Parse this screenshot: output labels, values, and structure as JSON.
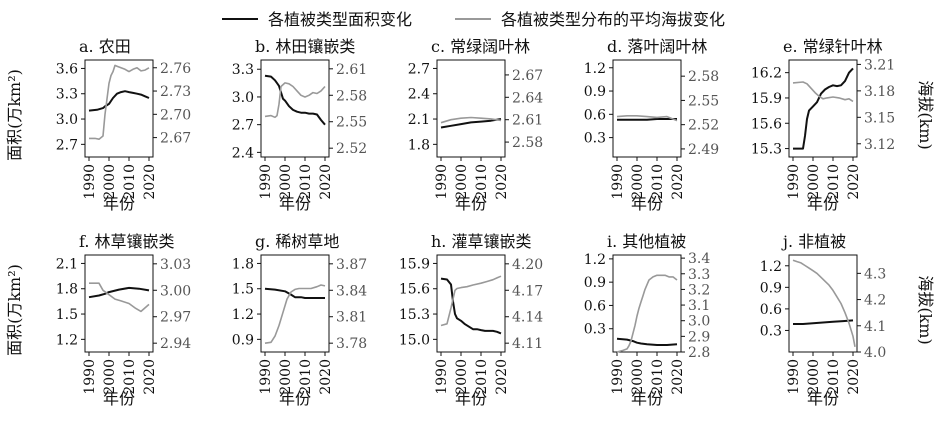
{
  "legend": {
    "area_label": "各植被类型面积变化",
    "elev_label": "各植被类型分布的平均海拔变化",
    "area_color": "#111111",
    "elev_color": "#999999"
  },
  "axis_labels": {
    "left_row1": "面积(万km²)",
    "left_row2": "面积(万km²)",
    "right_row1": "海拔(km)",
    "right_row2": "海拔(km)",
    "xlabel": "年份"
  },
  "chart_data": [
    {
      "type": "line",
      "title": "a. 农田",
      "xticks": [
        "1990",
        "2000",
        "2010",
        "2020"
      ],
      "xlim": [
        1988,
        2022
      ],
      "yleft": {
        "lim": [
          2.55,
          3.7
        ],
        "ticks": [
          "2.7",
          "3.0",
          "3.3",
          "3.6"
        ]
      },
      "yright": {
        "lim": [
          2.645,
          2.77
        ],
        "ticks": [
          "2.67",
          "2.70",
          "2.73",
          "2.76"
        ]
      },
      "series": [
        {
          "axis": "left",
          "x": [
            1990,
            1994,
            1997,
            1998,
            2000,
            2002,
            2004,
            2006,
            2008,
            2010,
            2012,
            2014,
            2016,
            2018,
            2020
          ],
          "y": [
            3.1,
            3.11,
            3.13,
            3.15,
            3.18,
            3.25,
            3.3,
            3.32,
            3.33,
            3.32,
            3.31,
            3.3,
            3.29,
            3.27,
            3.25
          ]
        },
        {
          "axis": "right",
          "x": [
            1990,
            1993,
            1995,
            1996,
            1997,
            1998,
            1999,
            2000,
            2001,
            2002,
            2003,
            2004,
            2006,
            2008,
            2010,
            2012,
            2014,
            2016,
            2018,
            2020
          ],
          "y": [
            2.669,
            2.669,
            2.668,
            2.67,
            2.672,
            2.7,
            2.72,
            2.74,
            2.75,
            2.755,
            2.763,
            2.762,
            2.76,
            2.758,
            2.755,
            2.758,
            2.76,
            2.756,
            2.757,
            2.76
          ]
        }
      ]
    },
    {
      "type": "line",
      "title": "b. 林田镶嵌类",
      "xticks": [
        "1990",
        "2000",
        "2010",
        "2020"
      ],
      "xlim": [
        1988,
        2022
      ],
      "yleft": {
        "lim": [
          2.35,
          3.4
        ],
        "ticks": [
          "2.4",
          "2.7",
          "3.0",
          "3.3"
        ]
      },
      "yright": {
        "lim": [
          2.51,
          2.62
        ],
        "ticks": [
          "2.52",
          "2.55",
          "2.58",
          "2.61"
        ]
      },
      "series": [
        {
          "axis": "left",
          "x": [
            1990,
            1993,
            1995,
            1996,
            1997,
            1998,
            1999,
            2000,
            2002,
            2004,
            2006,
            2008,
            2010,
            2012,
            2014,
            2016,
            2018,
            2020
          ],
          "y": [
            3.23,
            3.22,
            3.18,
            3.15,
            3.12,
            3.05,
            2.98,
            2.96,
            2.9,
            2.86,
            2.84,
            2.83,
            2.83,
            2.82,
            2.82,
            2.81,
            2.75,
            2.7
          ]
        },
        {
          "axis": "right",
          "x": [
            1990,
            1993,
            1995,
            1996,
            1997,
            1998,
            2000,
            2002,
            2004,
            2006,
            2008,
            2010,
            2012,
            2014,
            2016,
            2018,
            2020
          ],
          "y": [
            2.556,
            2.557,
            2.555,
            2.557,
            2.57,
            2.59,
            2.594,
            2.593,
            2.59,
            2.585,
            2.58,
            2.578,
            2.58,
            2.583,
            2.582,
            2.585,
            2.59
          ]
        }
      ]
    },
    {
      "type": "line",
      "title": "c. 常绿阔叶林",
      "xticks": [
        "1990",
        "2000",
        "2010",
        "2020"
      ],
      "xlim": [
        1988,
        2022
      ],
      "yleft": {
        "lim": [
          1.65,
          2.8
        ],
        "ticks": [
          "1.8",
          "2.1",
          "2.4",
          "2.7"
        ]
      },
      "yright": {
        "lim": [
          2.56,
          2.69
        ],
        "ticks": [
          "2.58",
          "2.61",
          "2.64",
          "2.67"
        ]
      },
      "series": [
        {
          "axis": "left",
          "x": [
            1990,
            1995,
            2000,
            2005,
            2010,
            2015,
            2020
          ],
          "y": [
            2.0,
            2.02,
            2.04,
            2.06,
            2.07,
            2.08,
            2.1
          ]
        },
        {
          "axis": "right",
          "x": [
            1990,
            1995,
            2000,
            2005,
            2010,
            2015,
            2020
          ],
          "y": [
            2.606,
            2.61,
            2.612,
            2.613,
            2.612,
            2.611,
            2.609
          ]
        }
      ]
    },
    {
      "type": "line",
      "title": "d. 落叶阔叶林",
      "xticks": [
        "1990",
        "2000",
        "2010",
        "2020"
      ],
      "xlim": [
        1988,
        2022
      ],
      "yleft": {
        "lim": [
          0.05,
          1.3
        ],
        "ticks": [
          "0.3",
          "0.6",
          "0.9",
          "1.2"
        ]
      },
      "yright": {
        "lim": [
          2.48,
          2.6
        ],
        "ticks": [
          "2.49",
          "2.52",
          "2.55",
          "2.58"
        ]
      },
      "series": [
        {
          "axis": "left",
          "x": [
            1990,
            1995,
            2000,
            2005,
            2010,
            2015,
            2020
          ],
          "y": [
            0.53,
            0.53,
            0.53,
            0.53,
            0.54,
            0.54,
            0.54
          ]
        },
        {
          "axis": "right",
          "x": [
            1990,
            1995,
            2000,
            2005,
            2010,
            2015,
            2020
          ],
          "y": [
            2.53,
            2.531,
            2.531,
            2.53,
            2.529,
            2.53,
            2.525
          ]
        }
      ]
    },
    {
      "type": "line",
      "title": "e. 常绿针叶林",
      "xticks": [
        "1990",
        "2000",
        "2010",
        "2020"
      ],
      "xlim": [
        1988,
        2022
      ],
      "yleft": {
        "lim": [
          15.2,
          16.35
        ],
        "ticks": [
          "15.3",
          "15.6",
          "15.9",
          "16.2"
        ]
      },
      "yright": {
        "lim": [
          3.105,
          3.215
        ],
        "ticks": [
          "3.12",
          "3.15",
          "3.18",
          "3.21"
        ]
      },
      "series": [
        {
          "axis": "left",
          "x": [
            1990,
            1993,
            1995,
            1996,
            1997,
            1998,
            2000,
            2002,
            2004,
            2006,
            2008,
            2010,
            2012,
            2014,
            2016,
            2018,
            2020
          ],
          "y": [
            15.3,
            15.3,
            15.3,
            15.45,
            15.65,
            15.75,
            15.8,
            15.85,
            15.95,
            16.0,
            16.03,
            16.05,
            16.04,
            16.05,
            16.1,
            16.2,
            16.25
          ]
        },
        {
          "axis": "right",
          "x": [
            1990,
            1995,
            1997,
            1999,
            2001,
            2003,
            2005,
            2007,
            2010,
            2013,
            2016,
            2018,
            2020
          ],
          "y": [
            3.189,
            3.19,
            3.188,
            3.183,
            3.178,
            3.174,
            3.171,
            3.172,
            3.173,
            3.172,
            3.17,
            3.171,
            3.168
          ]
        }
      ]
    },
    {
      "type": "line",
      "title": "f. 林草镶嵌类",
      "xticks": [
        "1990",
        "2000",
        "2010",
        "2020"
      ],
      "xlim": [
        1988,
        2022
      ],
      "yleft": {
        "lim": [
          1.05,
          2.2
        ],
        "ticks": [
          "1.2",
          "1.5",
          "1.8",
          "2.1"
        ]
      },
      "yright": {
        "lim": [
          2.93,
          3.04
        ],
        "ticks": [
          "2.94",
          "2.97",
          "3.00",
          "3.03"
        ]
      },
      "series": [
        {
          "axis": "left",
          "x": [
            1990,
            1995,
            1998,
            2000,
            2005,
            2010,
            2015,
            2020
          ],
          "y": [
            1.7,
            1.72,
            1.74,
            1.76,
            1.79,
            1.81,
            1.8,
            1.78
          ]
        },
        {
          "axis": "right",
          "x": [
            1990,
            1995,
            1997,
            2000,
            2003,
            2006,
            2010,
            2013,
            2016,
            2018,
            2020
          ],
          "y": [
            3.008,
            3.008,
            3.0,
            2.995,
            2.99,
            2.988,
            2.985,
            2.98,
            2.976,
            2.98,
            2.984
          ]
        }
      ]
    },
    {
      "type": "line",
      "title": "g. 稀树草地",
      "xticks": [
        "1990",
        "2000",
        "2010",
        "2020"
      ],
      "xlim": [
        1988,
        2022
      ],
      "yleft": {
        "lim": [
          0.75,
          1.9
        ],
        "ticks": [
          "0.9",
          "1.2",
          "1.5",
          "1.8"
        ]
      },
      "yright": {
        "lim": [
          3.77,
          3.88
        ],
        "ticks": [
          "3.78",
          "3.81",
          "3.84",
          "3.87"
        ]
      },
      "series": [
        {
          "axis": "left",
          "x": [
            1990,
            1995,
            2000,
            2003,
            2005,
            2008,
            2010,
            2015,
            2020
          ],
          "y": [
            1.5,
            1.49,
            1.47,
            1.43,
            1.4,
            1.4,
            1.39,
            1.39,
            1.39
          ]
        },
        {
          "axis": "right",
          "x": [
            1990,
            1993,
            1995,
            1997,
            1999,
            2001,
            2003,
            2005,
            2007,
            2010,
            2013,
            2016,
            2018,
            2020
          ],
          "y": [
            3.78,
            3.781,
            3.788,
            3.8,
            3.815,
            3.83,
            3.838,
            3.841,
            3.842,
            3.842,
            3.842,
            3.844,
            3.846,
            3.845
          ]
        }
      ]
    },
    {
      "type": "line",
      "title": "h. 灌草镶嵌类",
      "xticks": [
        "1990",
        "2000",
        "2010",
        "2020"
      ],
      "xlim": [
        1988,
        2022
      ],
      "yleft": {
        "lim": [
          14.85,
          16.0
        ],
        "ticks": [
          "15.0",
          "15.3",
          "15.6",
          "15.9"
        ]
      },
      "yright": {
        "lim": [
          4.1,
          4.21
        ],
        "ticks": [
          "4.11",
          "4.14",
          "4.17",
          "4.20"
        ]
      },
      "series": [
        {
          "axis": "left",
          "x": [
            1990,
            1993,
            1995,
            1996,
            1997,
            1998,
            2000,
            2002,
            2004,
            2006,
            2008,
            2010,
            2012,
            2014,
            2016,
            2018,
            2020
          ],
          "y": [
            15.72,
            15.71,
            15.65,
            15.45,
            15.3,
            15.25,
            15.22,
            15.18,
            15.15,
            15.12,
            15.12,
            15.11,
            15.1,
            15.1,
            15.1,
            15.09,
            15.07
          ]
        },
        {
          "axis": "right",
          "x": [
            1990,
            1993,
            1995,
            1996,
            1997,
            1998,
            2000,
            2003,
            2006,
            2010,
            2013,
            2016,
            2018,
            2020
          ],
          "y": [
            4.13,
            4.132,
            4.15,
            4.16,
            4.17,
            4.172,
            4.173,
            4.174,
            4.176,
            4.178,
            4.18,
            4.182,
            4.184,
            4.186
          ]
        }
      ]
    },
    {
      "type": "line",
      "title": "i. 其他植被",
      "xticks": [
        "1990",
        "2000",
        "2010",
        "2020"
      ],
      "xlim": [
        1988,
        2022
      ],
      "yleft": {
        "lim": [
          0.0,
          1.25
        ],
        "ticks": [
          "0.3",
          "0.6",
          "0.9",
          "1.2"
        ]
      },
      "yright": {
        "lim": [
          2.8,
          3.42
        ],
        "ticks": [
          "2.8",
          "2.9",
          "3.0",
          "3.1",
          "3.2",
          "3.3",
          "3.4"
        ]
      },
      "series": [
        {
          "axis": "left",
          "x": [
            1990,
            1995,
            1998,
            2000,
            2002,
            2005,
            2010,
            2015,
            2020
          ],
          "y": [
            0.17,
            0.16,
            0.14,
            0.12,
            0.11,
            0.1,
            0.09,
            0.09,
            0.1
          ]
        },
        {
          "axis": "right",
          "x": [
            1990,
            1993,
            1995,
            1996,
            1997,
            1998,
            1999,
            2000,
            2001,
            2002,
            2003,
            2004,
            2005,
            2006,
            2008,
            2010,
            2012,
            2014,
            2016,
            2018,
            2020
          ],
          "y": [
            2.8,
            2.81,
            2.82,
            2.84,
            2.87,
            2.92,
            2.97,
            3.03,
            3.08,
            3.12,
            3.16,
            3.2,
            3.23,
            3.26,
            3.28,
            3.29,
            3.29,
            3.29,
            3.28,
            3.28,
            3.26
          ]
        }
      ]
    },
    {
      "type": "line",
      "title": "j. 非植被",
      "xticks": [
        "1990",
        "2000",
        "2010",
        "2020"
      ],
      "xlim": [
        1988,
        2022
      ],
      "yleft": {
        "lim": [
          0.0,
          1.35
        ],
        "ticks": [
          "0.3",
          "0.6",
          "0.9",
          "1.2"
        ]
      },
      "yright": {
        "lim": [
          4.0,
          4.37
        ],
        "ticks": [
          "4.0",
          "4.1",
          "4.2",
          "4.3"
        ]
      },
      "series": [
        {
          "axis": "left",
          "x": [
            1990,
            1995,
            2000,
            2005,
            2010,
            2015,
            2020
          ],
          "y": [
            0.39,
            0.39,
            0.4,
            0.41,
            0.42,
            0.43,
            0.44
          ]
        },
        {
          "axis": "right",
          "x": [
            1990,
            1992,
            1994,
            1996,
            1998,
            2000,
            2002,
            2004,
            2006,
            2008,
            2010,
            2012,
            2014,
            2016,
            2018,
            2020,
            2021
          ],
          "y": [
            4.35,
            4.345,
            4.34,
            4.33,
            4.32,
            4.31,
            4.3,
            4.285,
            4.27,
            4.255,
            4.235,
            4.21,
            4.185,
            4.15,
            4.11,
            4.06,
            4.02
          ]
        }
      ]
    }
  ]
}
